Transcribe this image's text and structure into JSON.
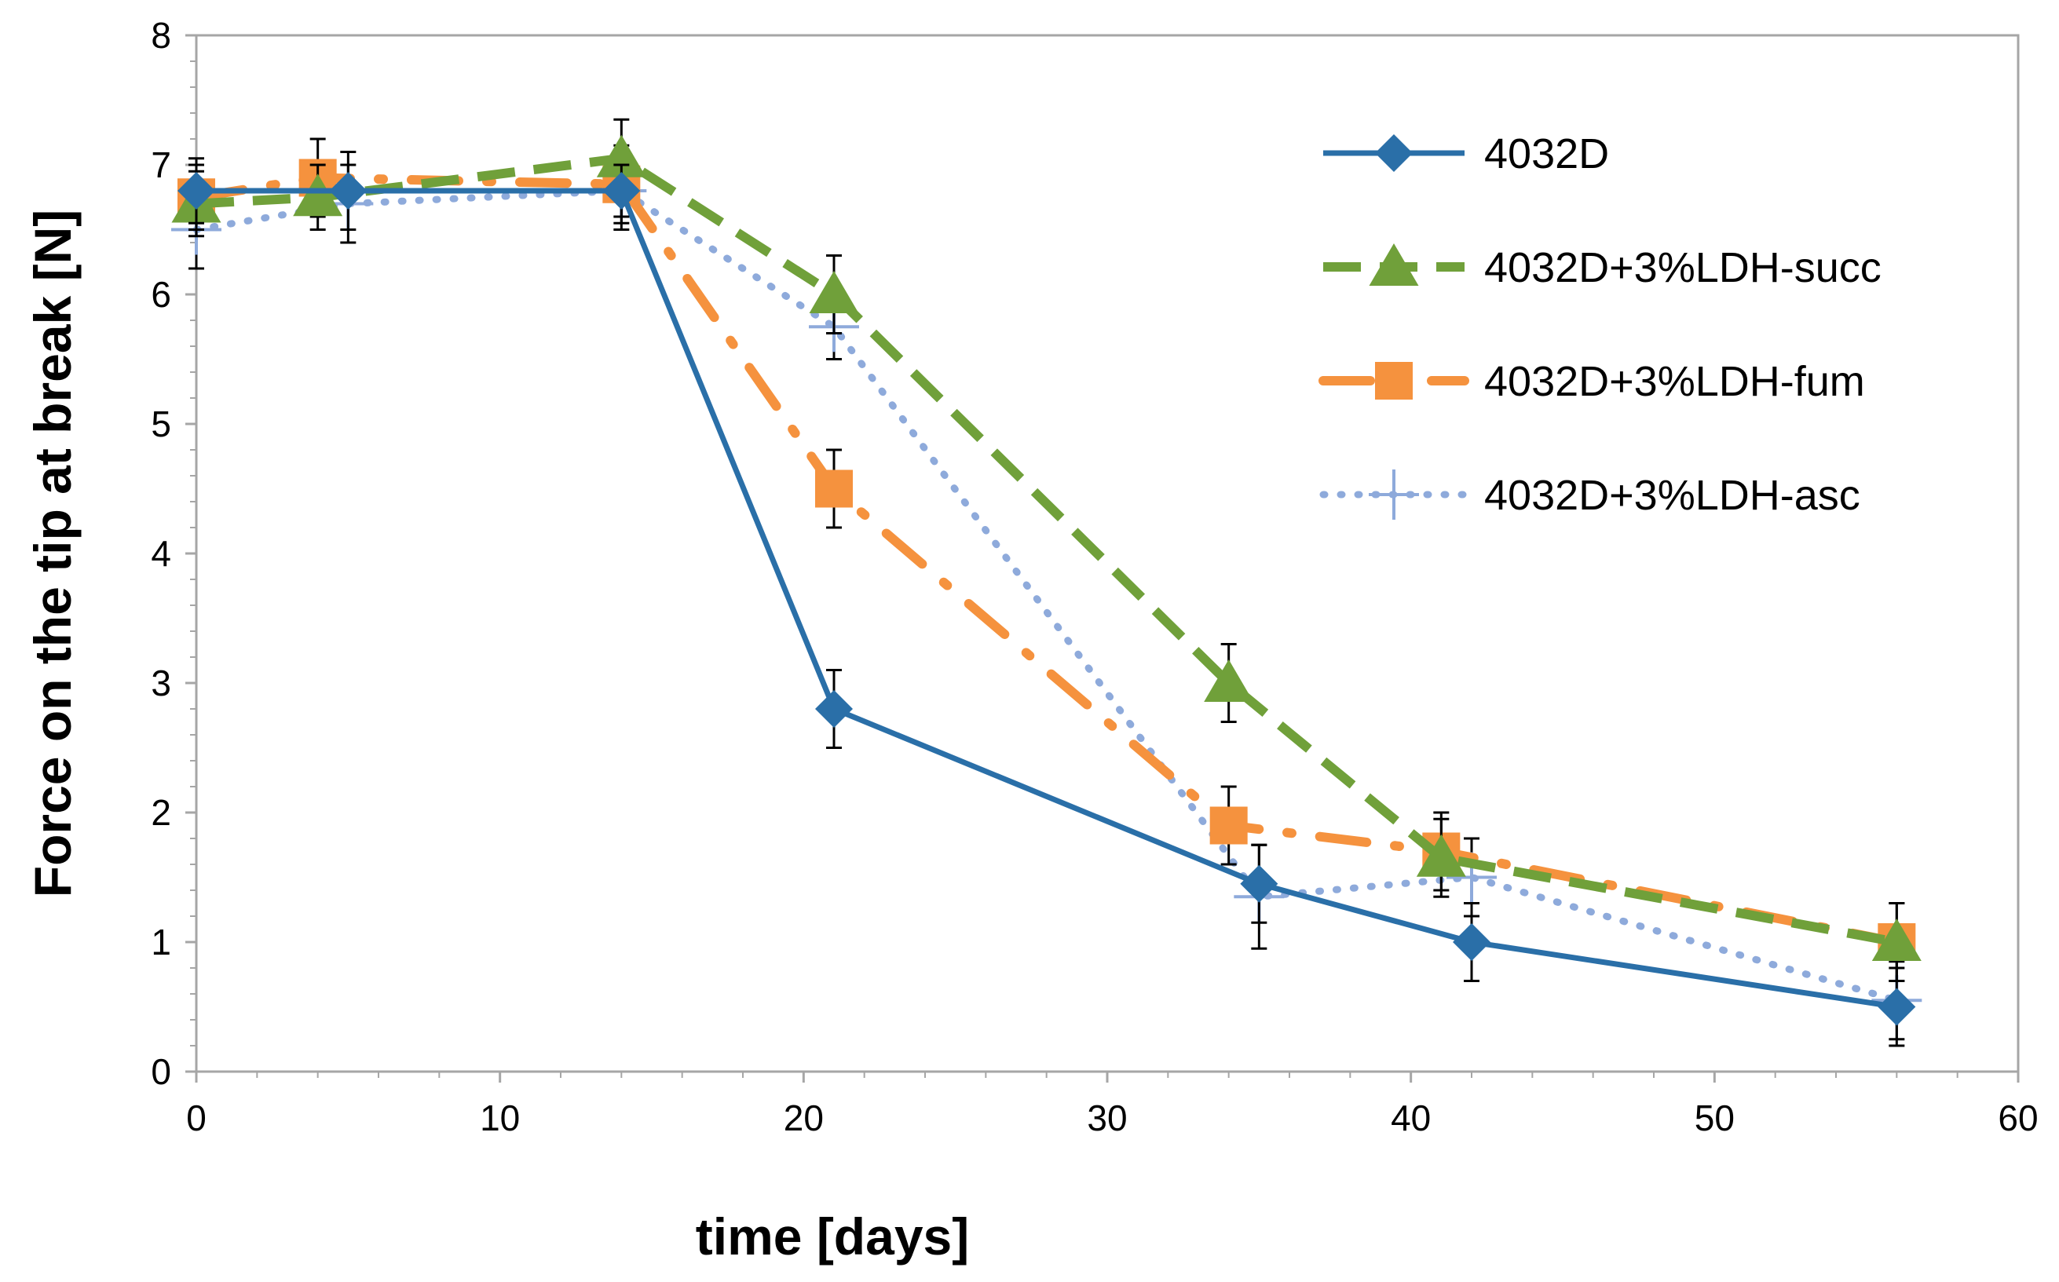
{
  "chart_data": {
    "type": "line",
    "title": "",
    "xlabel": "time [days]",
    "ylabel": "Force on the tip at break [N]",
    "xlim": [
      0,
      60
    ],
    "ylim": [
      0,
      8
    ],
    "xticks": [
      0,
      10,
      20,
      30,
      40,
      50,
      60
    ],
    "yticks": [
      0,
      1,
      2,
      3,
      4,
      5,
      6,
      7,
      8
    ],
    "grid": "horizontal-none",
    "legend_position": "top-right",
    "series": [
      {
        "name": "4032D",
        "color": "#2a6fa8",
        "line_style": "solid",
        "marker": "diamond",
        "x": [
          0,
          5,
          14,
          21,
          35,
          42,
          56
        ],
        "y": [
          6.8,
          6.8,
          6.8,
          2.8,
          1.45,
          1.0,
          0.5
        ],
        "err": [
          0.25,
          0.3,
          0.2,
          0.3,
          0.3,
          0.3,
          0.3
        ]
      },
      {
        "name": "4032D+3%LDH-succ",
        "color": "#70a03a",
        "line_style": "dashed",
        "marker": "triangle",
        "x": [
          0,
          4,
          14,
          21,
          34,
          41,
          56
        ],
        "y": [
          6.7,
          6.75,
          7.05,
          6.0,
          3.0,
          1.65,
          1.0
        ],
        "err": [
          0.25,
          0.25,
          0.3,
          0.3,
          0.3,
          0.3,
          0.3
        ]
      },
      {
        "name": "4032D+3%LDH-fum",
        "color": "#f5923e",
        "line_style": "dash-dot",
        "marker": "square",
        "x": [
          0,
          4,
          14,
          21,
          34,
          41,
          56
        ],
        "y": [
          6.75,
          6.9,
          6.85,
          4.5,
          1.9,
          1.7,
          1.0
        ],
        "err": [
          0.25,
          0.3,
          0.3,
          0.3,
          0.3,
          0.3,
          0.3
        ]
      },
      {
        "name": "4032D+3%LDH-asc",
        "color": "#8eaadb",
        "line_style": "dotted",
        "marker": "plus",
        "x": [
          0,
          5,
          14,
          21,
          35,
          42,
          56
        ],
        "y": [
          6.5,
          6.7,
          6.8,
          5.75,
          1.35,
          1.5,
          0.55
        ],
        "err": [
          0.3,
          0.3,
          0.3,
          0.25,
          0.4,
          0.3,
          0.3
        ]
      }
    ]
  }
}
